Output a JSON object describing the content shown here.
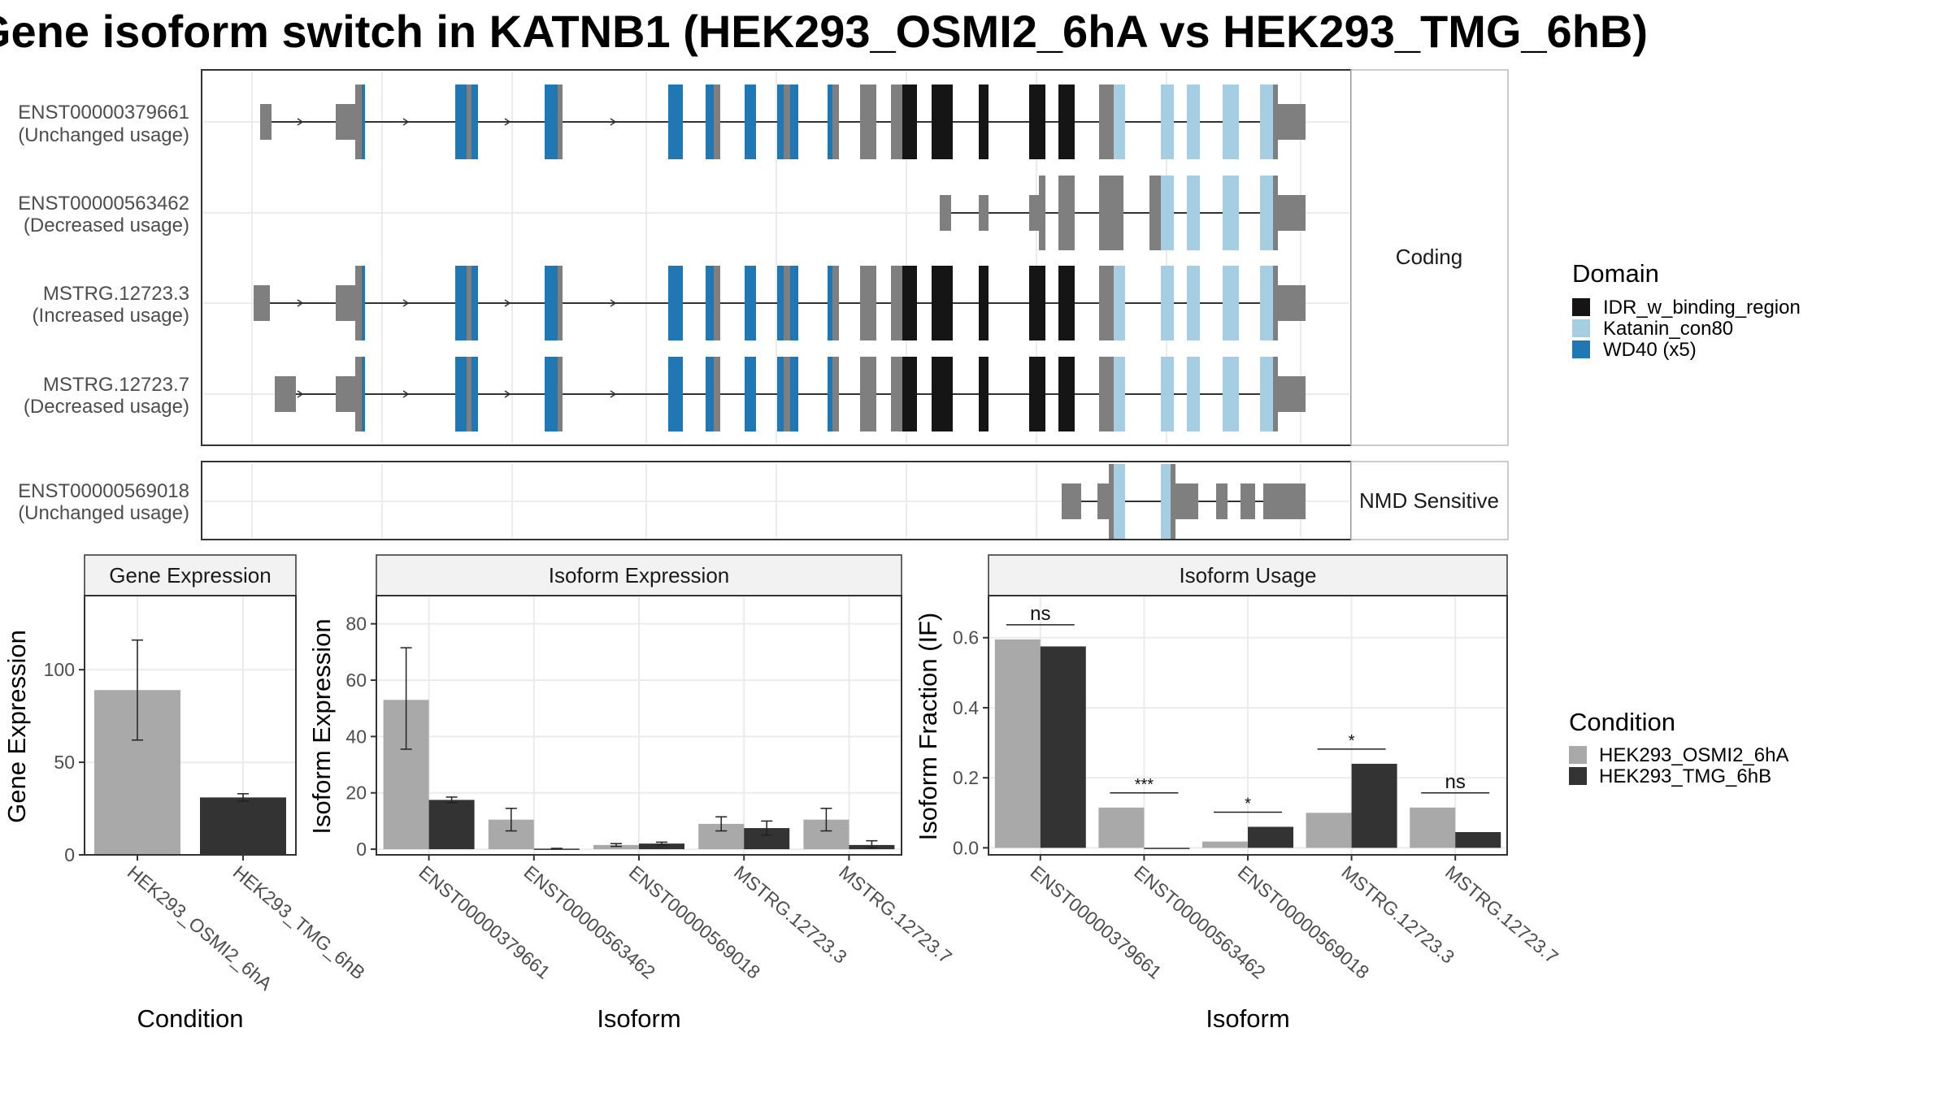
{
  "figure": {
    "title": "Gene isoform switch in KATNB1 (HEK293_OSMI2_6hA vs HEK293_TMG_6hB)"
  },
  "colors": {
    "IDR_w_binding_region": "#151515",
    "Katanin_con80": "#a6cee3",
    "WD40": "#1f78b4",
    "noncoding": "#7f7f7f",
    "cond_a": "#a9a9a9",
    "cond_b": "#333333"
  },
  "structure": {
    "transcripts": [
      {
        "id": "ENST00000379661",
        "note": "(Unchanged usage)",
        "facet": "Coding",
        "start": 0
      },
      {
        "id": "ENST00000563462",
        "note": "(Decreased usage)",
        "facet": "Coding",
        "start": 1
      },
      {
        "id": "MSTRG.12723.3",
        "note": "(Increased usage)",
        "facet": "Coding",
        "start": 0
      },
      {
        "id": "MSTRG.12723.7",
        "note": "(Decreased usage)",
        "facet": "Coding",
        "start": 0
      },
      {
        "id": "ENST00000569018",
        "note": "(Unchanged usage)",
        "facet": "NMD",
        "start": 2
      }
    ],
    "facet_labels": {
      "coding": "Coding",
      "nmd": "NMD Sensitive"
    }
  },
  "legend_domain": {
    "title": "Domain",
    "items": [
      {
        "label": "IDR_w_binding_region",
        "color": "#151515"
      },
      {
        "label": "Katanin_con80",
        "color": "#a6cee3"
      },
      {
        "label": "WD40 (x5)",
        "color": "#1f78b4"
      }
    ]
  },
  "legend_condition": {
    "title": "Condition",
    "items": [
      {
        "label": "HEK293_OSMI2_6hA",
        "color": "#a9a9a9"
      },
      {
        "label": "HEK293_TMG_6hB",
        "color": "#333333"
      }
    ]
  },
  "chart_data": [
    {
      "type": "bar",
      "title": "Gene Expression",
      "xlabel": "Condition",
      "ylabel": "Gene Expression",
      "categories": [
        "HEK293_OSMI2_6hA",
        "HEK293_TMG_6hB"
      ],
      "values": [
        89,
        31
      ],
      "error_low": [
        62,
        29
      ],
      "error_high": [
        116,
        33
      ],
      "ylim": [
        0,
        140
      ],
      "yticks": [
        0,
        50,
        100
      ]
    },
    {
      "type": "bar",
      "title": "Isoform Expression",
      "xlabel": "Isoform",
      "ylabel": "Isoform Expression",
      "categories": [
        "ENST00000379661",
        "ENST00000563462",
        "ENST00000569018",
        "MSTRG.12723.3",
        "MSTRG.12723.7"
      ],
      "series": [
        {
          "name": "HEK293_OSMI2_6hA",
          "values": [
            53,
            10.5,
            1.5,
            9,
            10.5
          ],
          "error_low": [
            35.5,
            6.5,
            1,
            6.5,
            6.5
          ],
          "error_high": [
            71.5,
            14.5,
            2,
            11.5,
            14.5
          ]
        },
        {
          "name": "HEK293_TMG_6hB",
          "values": [
            17.5,
            0.2,
            2,
            7.5,
            1.5
          ],
          "error_low": [
            16.5,
            0.1,
            1.5,
            5,
            0.5
          ],
          "error_high": [
            18.5,
            0.3,
            2.5,
            10,
            3
          ]
        }
      ],
      "ylim": [
        -2,
        90
      ],
      "yticks": [
        0,
        20,
        40,
        60,
        80
      ]
    },
    {
      "type": "bar",
      "title": "Isoform Usage",
      "xlabel": "Isoform",
      "ylabel": "Isoform Fraction (IF)",
      "categories": [
        "ENST00000379661",
        "ENST00000563462",
        "ENST00000569018",
        "MSTRG.12723.3",
        "MSTRG.12723.7"
      ],
      "series": [
        {
          "name": "HEK293_OSMI2_6hA",
          "values": [
            0.595,
            0.115,
            0.018,
            0.1,
            0.115
          ]
        },
        {
          "name": "HEK293_TMG_6hB",
          "values": [
            0.575,
            0.0,
            0.06,
            0.24,
            0.045
          ]
        }
      ],
      "significance": [
        "ns",
        "***",
        "*",
        "*",
        "ns"
      ],
      "ylim": [
        -0.02,
        0.72
      ],
      "yticks": [
        "0.0",
        "0.2",
        "0.4",
        "0.6"
      ]
    }
  ]
}
